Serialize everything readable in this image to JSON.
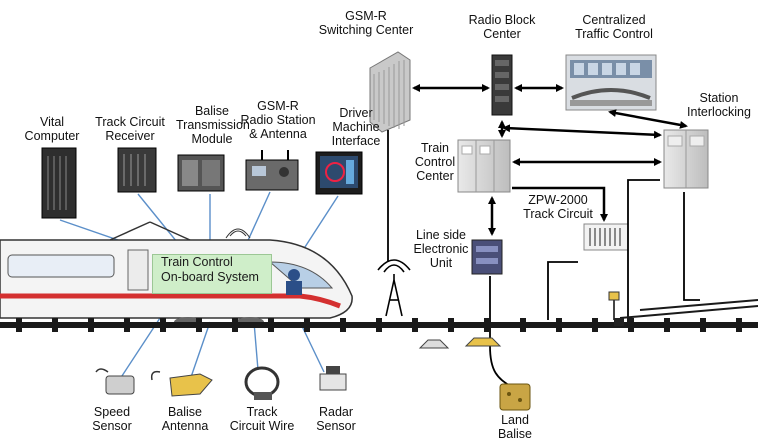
{
  "title": "",
  "labels": {
    "gsmr_switching": [
      "GSM-R",
      "Switching Center"
    ],
    "radio_block": [
      "Radio Block",
      "Center"
    ],
    "ctc": [
      "Centralized",
      "Traffic Control"
    ],
    "station_interlocking": [
      "Station",
      "Interlocking"
    ],
    "train_control_center": [
      "Train",
      "Control",
      "Center"
    ],
    "zpw2000": [
      "ZPW-2000",
      "Track Circuit"
    ],
    "lineside_unit": [
      "Line side",
      "Electronic",
      "Unit"
    ],
    "vital_computer": [
      "Vital",
      "Computer"
    ],
    "track_circuit_receiver": [
      "Track Circuit",
      "Receiver"
    ],
    "balise_module": [
      "Balise",
      "Transmission",
      "Module"
    ],
    "gsmr_radio": [
      "GSM-R",
      "Radio Station",
      "& Antenna"
    ],
    "dmi": [
      "Driver",
      "Machine",
      "Interface"
    ],
    "onboard_system": [
      "Train Control",
      "On-board System"
    ],
    "speed_sensor": [
      "Speed",
      "Sensor"
    ],
    "balise_antenna": [
      "Balise",
      "Antenna"
    ],
    "track_circuit_wire": [
      "Track",
      "Circuit Wire"
    ],
    "radar_sensor": [
      "Radar",
      "Sensor"
    ],
    "land_balise": [
      "Land",
      "Balise"
    ]
  },
  "colors": {
    "onboard_box": "#cfeec9",
    "train_stripe": "#d43030",
    "rail": "#1a1a1a",
    "connector": "#5b8fc9",
    "equipment": "#8a8a8a",
    "balise": "#e8c24a"
  }
}
